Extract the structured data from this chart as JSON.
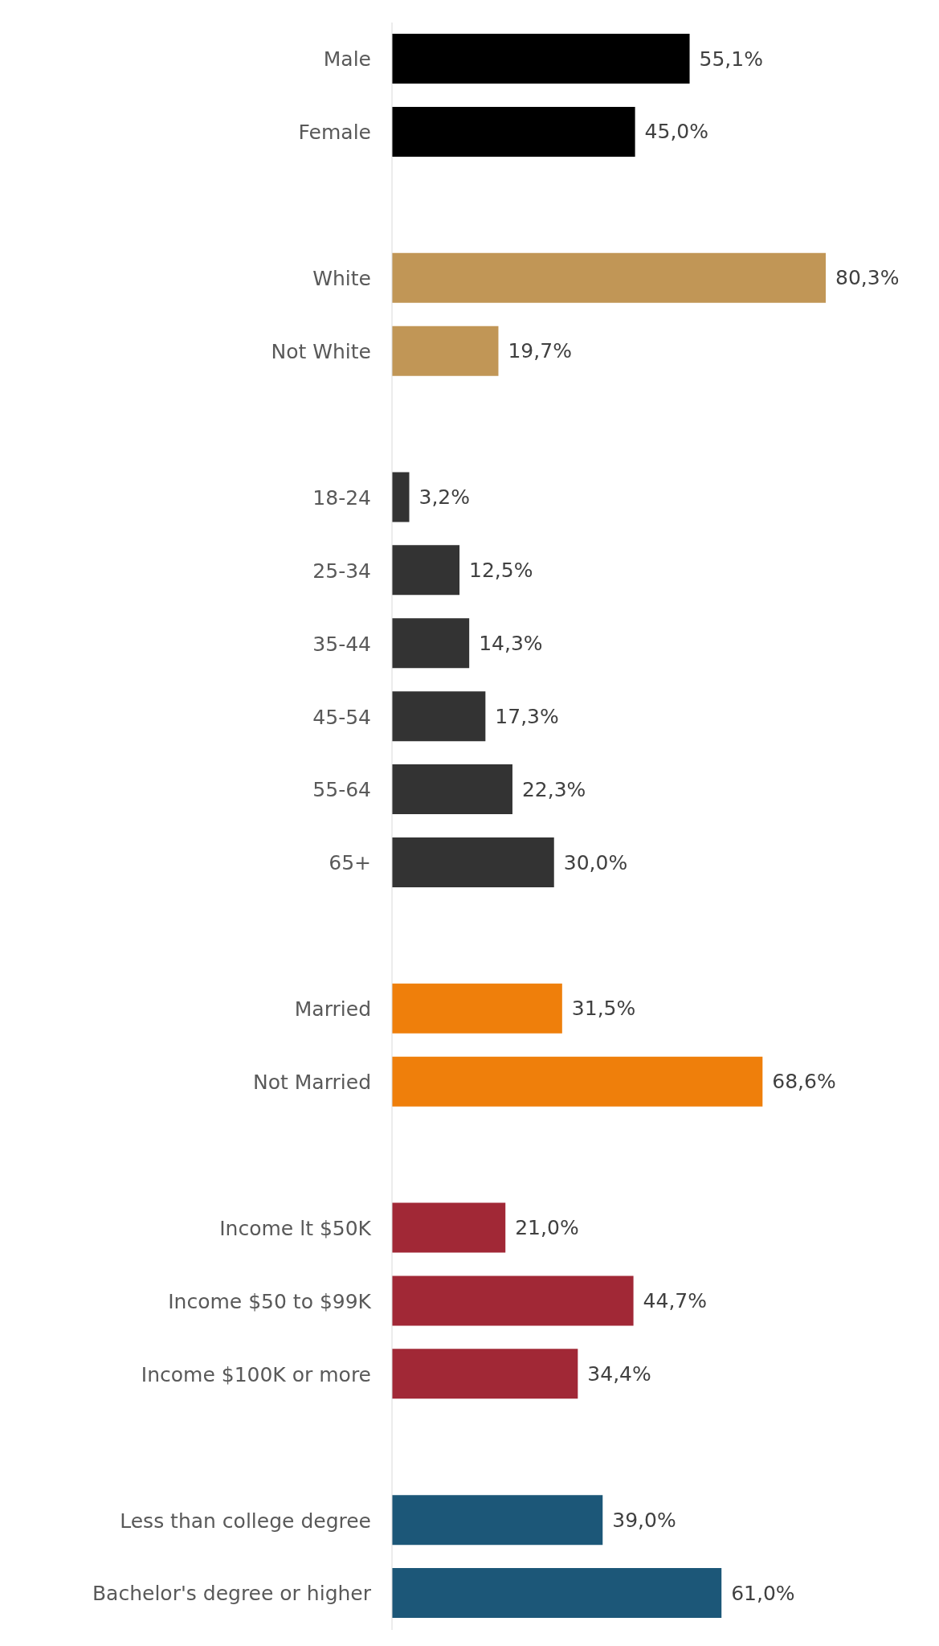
{
  "chart_data": {
    "type": "bar",
    "orientation": "horizontal",
    "categories": [
      "Male",
      "Female",
      null,
      "White",
      "Not White",
      null,
      "18-24",
      "25-34",
      "35-44",
      "45-54",
      "55-64",
      "65+",
      null,
      "Married",
      "Not Married",
      null,
      "Income lt $50K",
      "Income $50 to $99K",
      "Income $100K or more",
      null,
      "Less than college degree",
      "Bachelor's degree or higher"
    ],
    "values": [
      55.1,
      45.0,
      null,
      80.3,
      19.7,
      null,
      3.2,
      12.5,
      14.3,
      17.3,
      22.3,
      30.0,
      null,
      31.5,
      68.6,
      null,
      21.0,
      44.7,
      34.4,
      null,
      39.0,
      61.0
    ],
    "value_labels": [
      "55,1%",
      "45,0%",
      null,
      "80,3%",
      "19,7%",
      null,
      "3,2%",
      "12,5%",
      "14,3%",
      "17,3%",
      "22,3%",
      "30,0%",
      null,
      "31,5%",
      "68,6%",
      null,
      "21,0%",
      "44,7%",
      "34,4%",
      null,
      "39,0%",
      "61,0%"
    ],
    "colors": [
      "#000000",
      "#000000",
      "#000000",
      "#c19656",
      "#c19656",
      "#c19656",
      "#333333",
      "#333333",
      "#333333",
      "#333333",
      "#333333",
      "#333333",
      "#333333",
      "#ef7f0b",
      "#ef7f0b",
      "#ef7f0b",
      "#a12836",
      "#a12836",
      "#a12836",
      "#a12836",
      "#1c5778",
      "#1c5778"
    ],
    "grid": false,
    "legend": false
  }
}
